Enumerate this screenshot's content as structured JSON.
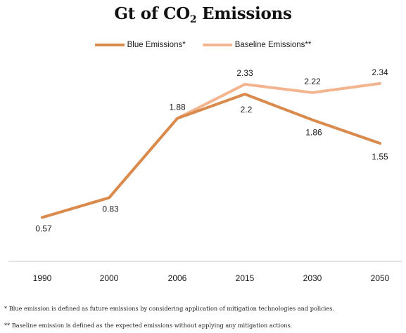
{
  "chart_data": {
    "type": "line",
    "title_main": "Gt of CO",
    "title_sub": "2",
    "title_tail": " Emissions",
    "categories": [
      "1990",
      "2000",
      "2006",
      "2015",
      "2030",
      "2050"
    ],
    "series": [
      {
        "name": "Blue Emissions*",
        "color": "#d98a4c",
        "values": [
          0.57,
          0.83,
          1.88,
          2.2,
          1.86,
          1.55
        ],
        "labels": [
          null,
          null,
          null,
          "2.2",
          "1.86",
          "1.55"
        ]
      },
      {
        "name": "Baseline Emissions**",
        "color": "#f3b490",
        "values": [
          0.57,
          0.83,
          1.88,
          2.33,
          2.22,
          2.34
        ],
        "labels": [
          "0.57",
          "0.83",
          "1.88",
          "2.33",
          "2.22",
          "2.34"
        ]
      }
    ],
    "grid": false,
    "legend_position": "top-center"
  },
  "footnotes": [
    "* Blue emission is defined as future emissions by considering application of mitigation technologies and policies.",
    "** Baseline emission is defined as the expected emissions without applying any mitigation actions."
  ]
}
